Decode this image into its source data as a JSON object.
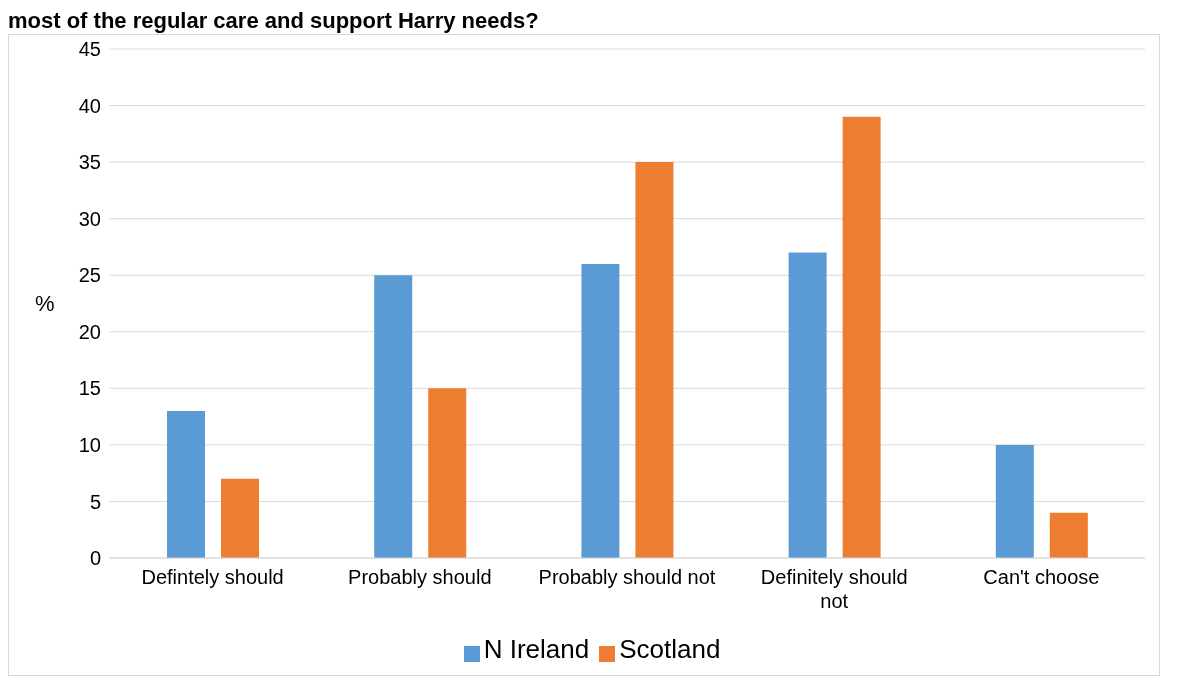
{
  "chart_data": {
    "type": "bar",
    "title": "most of the regular care and support Harry needs?",
    "ylabel": "%",
    "categories": [
      "Defintely should",
      "Probably should",
      "Probably should not",
      "Definitely should not",
      "Can't choose"
    ],
    "series": [
      {
        "name": "N Ireland",
        "color": "#5b9bd5",
        "values": [
          13,
          25,
          26,
          27,
          10
        ]
      },
      {
        "name": "Scotland",
        "color": "#ed7d31",
        "values": [
          7,
          15,
          35,
          39,
          4
        ]
      }
    ],
    "ylim": [
      0,
      45
    ],
    "yticks": [
      0,
      5,
      10,
      15,
      20,
      25,
      30,
      35,
      40,
      45
    ],
    "grid": "y",
    "legend": "bottom"
  }
}
